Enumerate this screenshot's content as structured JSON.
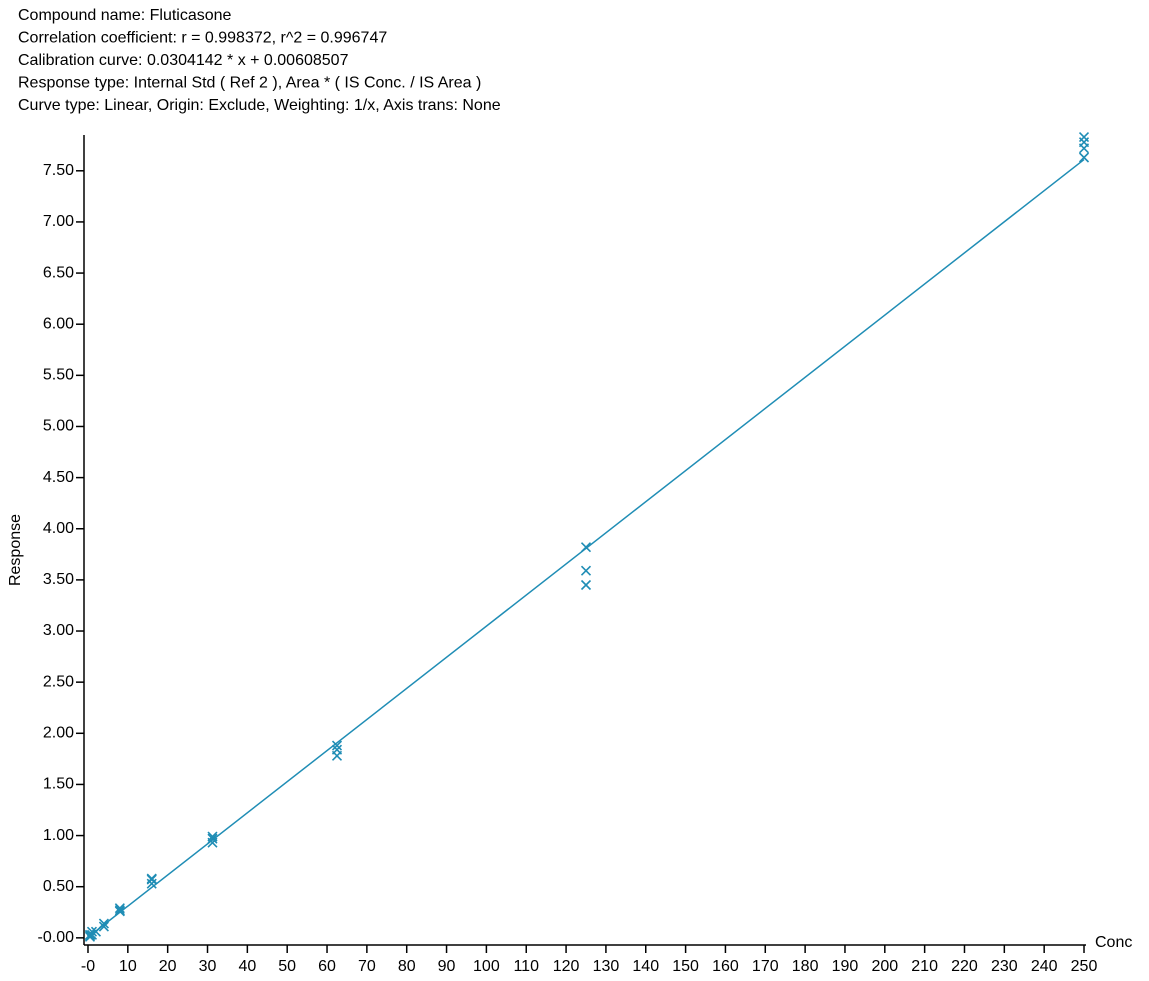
{
  "chart_data": {
    "type": "scatter",
    "header_lines": [
      "Compound name: Fluticasone",
      "Correlation coefficient: r = 0.998372, r^2 = 0.996747",
      "Calibration curve: 0.0304142 * x + 0.00608507",
      "Response type: Internal Std ( Ref 2 ), Area * ( IS Conc. / IS Area )",
      "Curve type: Linear, Origin: Exclude, Weighting: 1/x, Axis trans: None"
    ],
    "x_label": "Conc",
    "y_label": "Response",
    "color": "#1f8db5",
    "x": [
      0.5,
      0.5,
      0.5,
      1,
      1,
      2,
      4,
      4,
      8,
      8,
      8,
      16,
      16,
      16,
      31.25,
      31.25,
      31.25,
      62.5,
      62.5,
      62.5,
      125,
      125,
      125,
      250,
      250,
      250,
      250
    ],
    "values": [
      0.01,
      0.02,
      0.03,
      0.03,
      0.06,
      0.06,
      0.11,
      0.14,
      0.26,
      0.27,
      0.29,
      0.53,
      0.57,
      0.58,
      0.93,
      0.97,
      0.99,
      1.78,
      1.84,
      1.88,
      3.45,
      3.59,
      3.82,
      7.63,
      7.72,
      7.78,
      7.83
    ],
    "fit_line": {
      "x": [
        0,
        250
      ],
      "values": [
        0.006,
        7.61
      ]
    },
    "xlim": [
      -1,
      250.5
    ],
    "ylim": [
      -0.07,
      7.85
    ],
    "xticks": [
      {
        "value": 0,
        "label": "-0"
      },
      10,
      20,
      30,
      40,
      50,
      60,
      70,
      80,
      90,
      100,
      110,
      120,
      130,
      140,
      150,
      160,
      170,
      180,
      190,
      200,
      210,
      220,
      230,
      240,
      250
    ],
    "yticks": [
      {
        "value": 0,
        "label": "-0.00"
      },
      {
        "value": 0.5,
        "label": "0.50"
      },
      {
        "value": 1,
        "label": "1.00"
      },
      {
        "value": 1.5,
        "label": "1.50"
      },
      {
        "value": 2,
        "label": "2.00"
      },
      {
        "value": 2.5,
        "label": "2.50"
      },
      {
        "value": 3,
        "label": "3.00"
      },
      {
        "value": 3.5,
        "label": "3.50"
      },
      {
        "value": 4,
        "label": "4.00"
      },
      {
        "value": 4.5,
        "label": "4.50"
      },
      {
        "value": 5,
        "label": "5.00"
      },
      {
        "value": 5.5,
        "label": "5.50"
      },
      {
        "value": 6,
        "label": "6.00"
      },
      {
        "value": 6.5,
        "label": "6.50"
      },
      {
        "value": 7,
        "label": "7.00"
      },
      {
        "value": 7.5,
        "label": "7.50"
      }
    ]
  }
}
